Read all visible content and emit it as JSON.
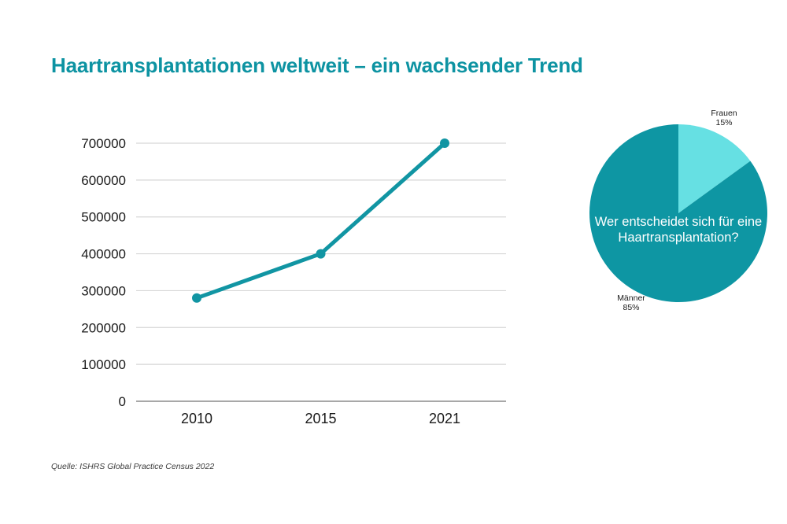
{
  "page": {
    "title": "Haartransplantationen weltweit – ein wachsender Trend",
    "source": "Quelle: ISHRS Global Practice Census 2022"
  },
  "colors": {
    "accent_teal": "#0d93a2",
    "line_teal": "#1195a3",
    "pie_dark_teal": "#0e96a3",
    "pie_light_cyan": "#66e0e3",
    "gridline": "#d6d6d6",
    "axis_line": "#8c8c8c",
    "text_dark": "#1a1a1a",
    "center_text": "#ffffff"
  },
  "chart_data": [
    {
      "type": "line",
      "title": "Haartransplantationen weltweit",
      "categories": [
        "2010",
        "2015",
        "2021"
      ],
      "values": [
        280000,
        400000,
        700000
      ],
      "xlabel": "",
      "ylabel": "",
      "ylim": [
        0,
        700000
      ],
      "ytick_step": 100000,
      "ytick_labels": [
        "0",
        "100000",
        "200000",
        "300000",
        "400000",
        "500000",
        "600000",
        "700000"
      ],
      "grid": true,
      "legend": "none",
      "marker": "circle"
    },
    {
      "type": "pie",
      "question": "Wer entscheidet sich für eine Haartransplantation?",
      "slices": [
        {
          "label": "Frauen",
          "pct": 15,
          "pct_label": "15%",
          "color": "#66e0e3"
        },
        {
          "label": "Männer",
          "pct": 85,
          "pct_label": "85%",
          "color": "#0e96a3"
        }
      ],
      "start_angle_deg": 0,
      "direction": "clockwise",
      "legend": "outside-labels"
    }
  ]
}
